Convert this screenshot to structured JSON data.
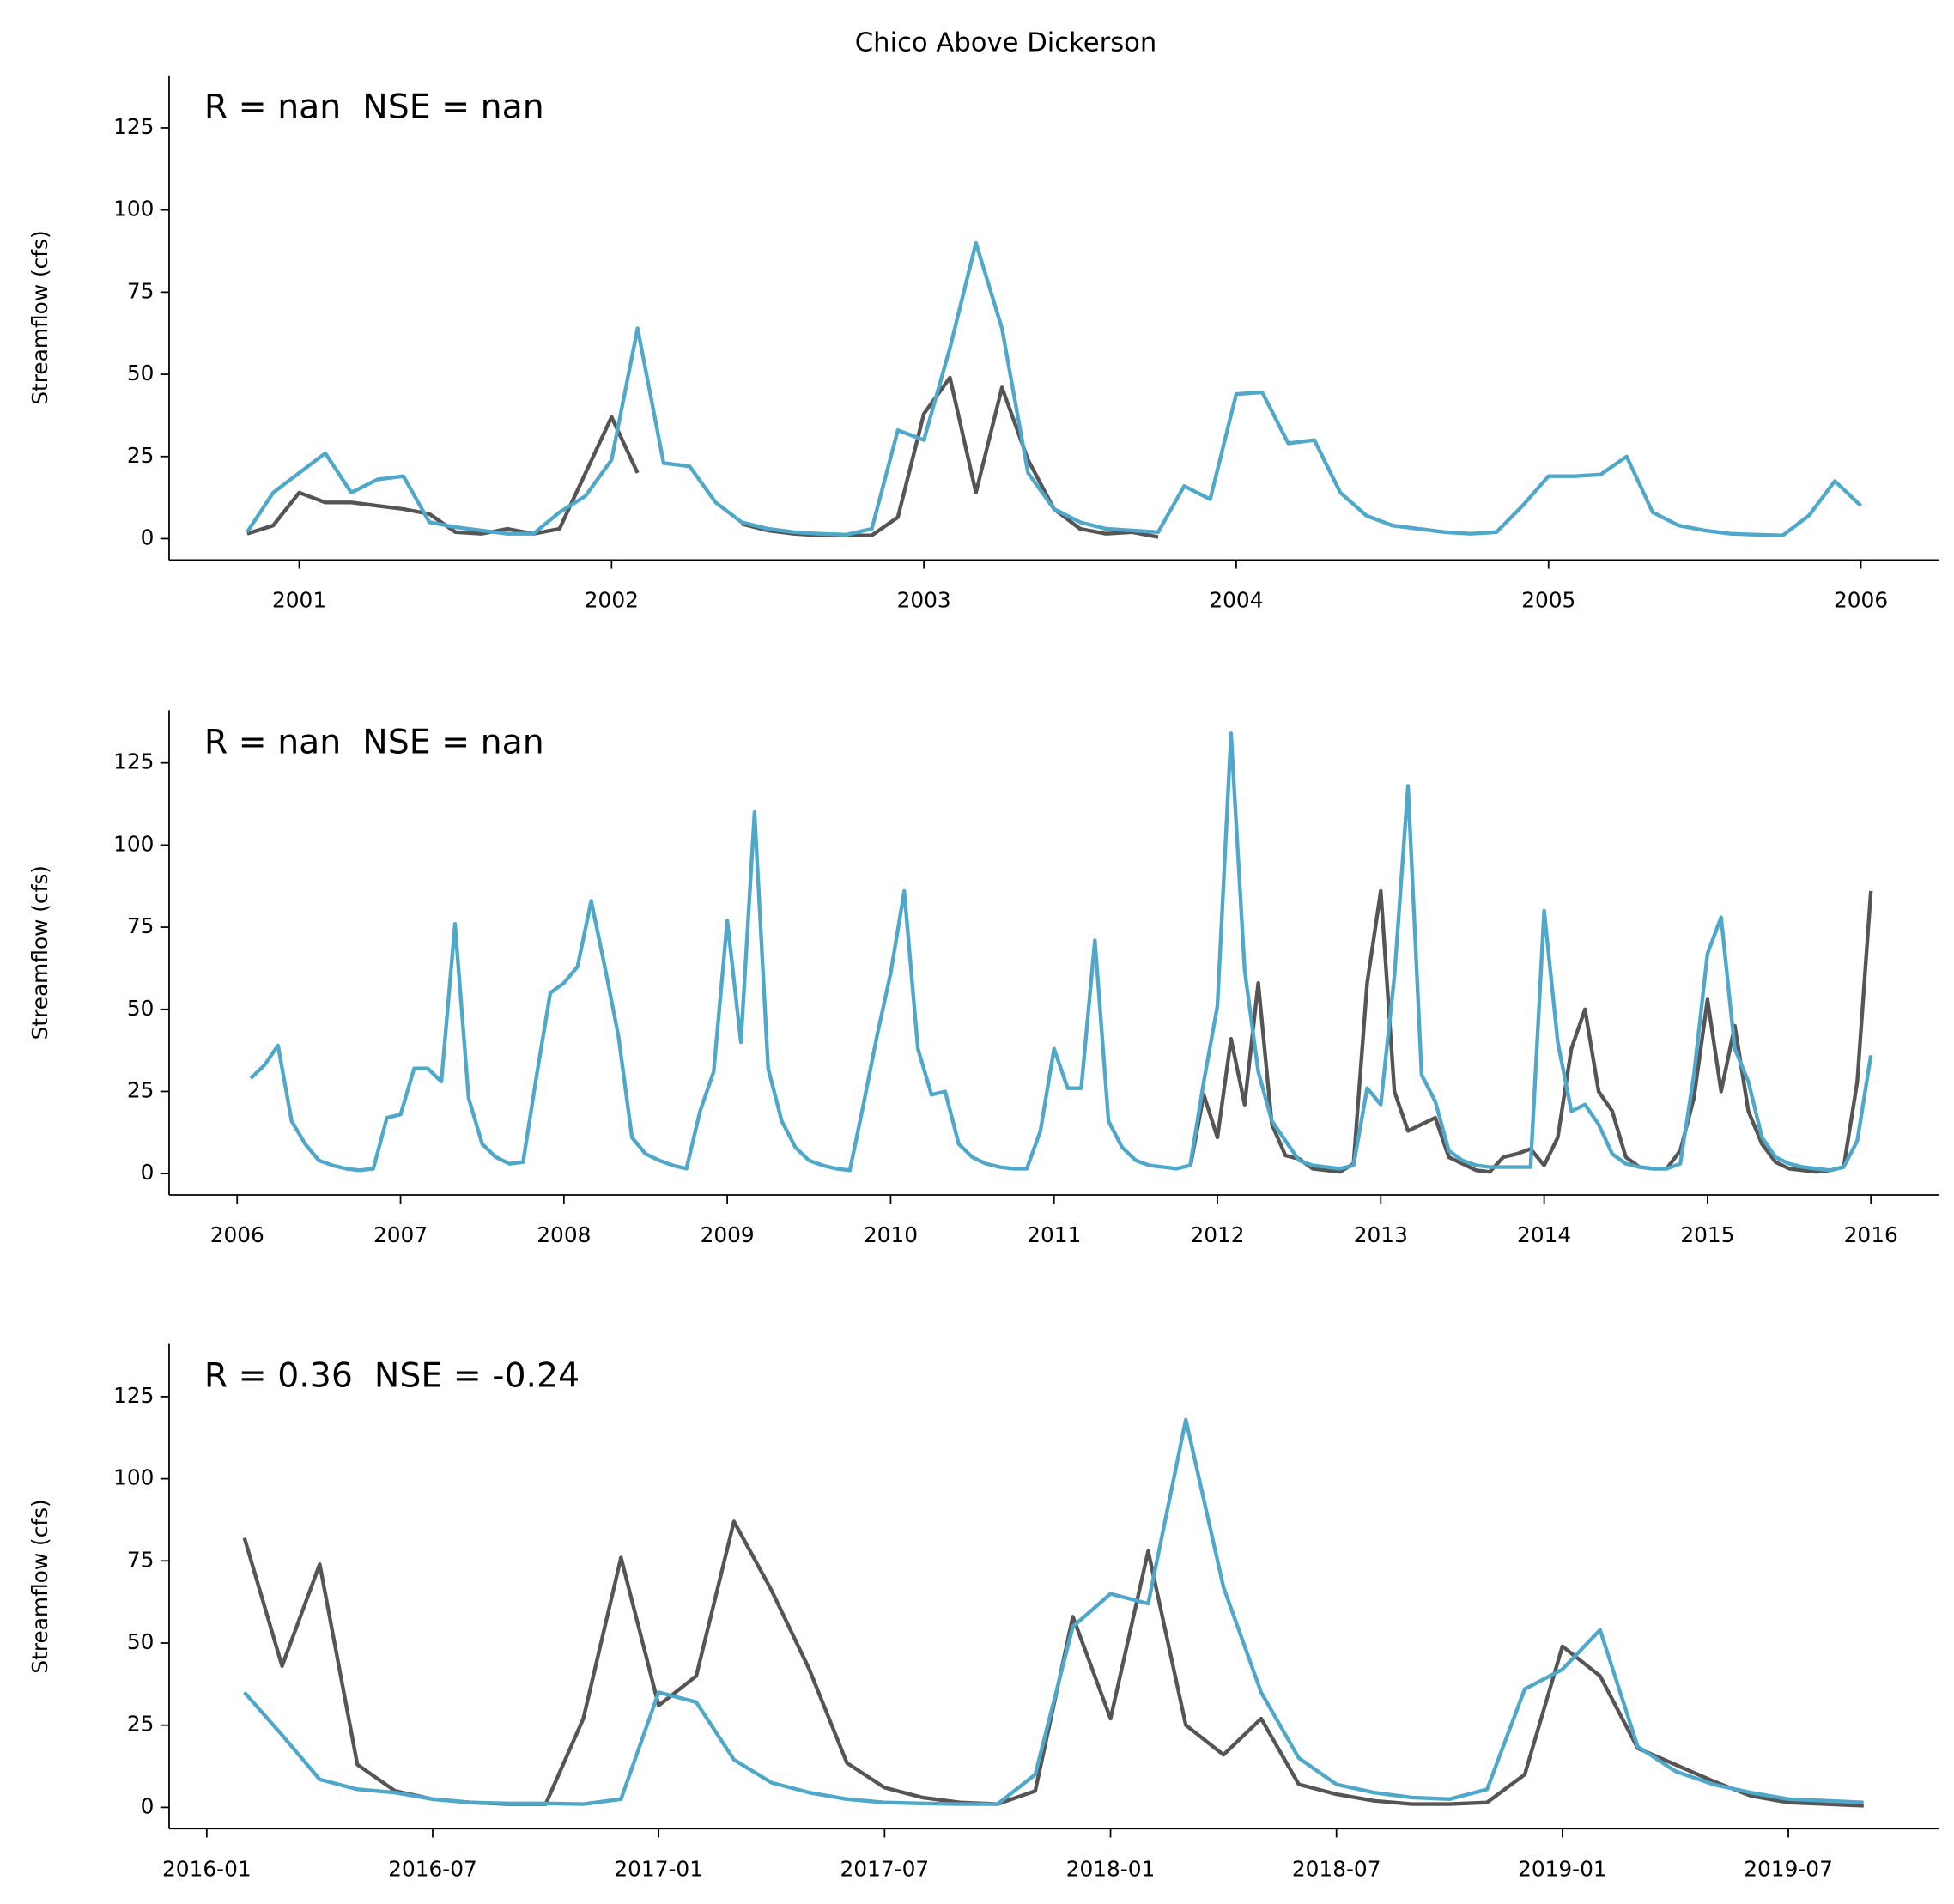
{
  "chart_data": [
    {
      "type": "line",
      "title": "Chico Above Dickerson",
      "annotation": "R = nan  NSE = nan",
      "ylabel": "Streamflow (cfs)",
      "x": [
        "2000-11",
        "2000-12",
        "2001-01",
        "2001-02",
        "2001-03",
        "2001-04",
        "2001-05",
        "2001-06",
        "2001-07",
        "2001-08",
        "2001-09",
        "2001-10",
        "2001-11",
        "2001-12",
        "2002-01",
        "2002-02",
        "2002-03",
        "2002-04",
        "2002-05",
        "2002-06",
        "2002-07",
        "2002-08",
        "2002-09",
        "2002-10",
        "2002-11",
        "2002-12",
        "2003-01",
        "2003-02",
        "2003-03",
        "2003-04",
        "2003-05",
        "2003-06",
        "2003-07",
        "2003-08",
        "2003-09",
        "2003-10",
        "2003-11",
        "2003-12",
        "2004-01",
        "2004-02",
        "2004-03",
        "2004-04",
        "2004-05",
        "2004-06",
        "2004-07",
        "2004-08",
        "2004-09",
        "2004-10",
        "2004-11",
        "2004-12",
        "2005-01",
        "2005-02",
        "2005-03",
        "2005-04",
        "2005-05",
        "2005-06",
        "2005-07",
        "2005-08",
        "2005-09",
        "2005-10",
        "2005-11",
        "2005-12",
        "2006-01"
      ],
      "series": [
        {
          "color": "#555555",
          "values": [
            1.5,
            4,
            14,
            11,
            11,
            10,
            9,
            7.5,
            2,
            1.5,
            3,
            1.5,
            3,
            20,
            37,
            20,
            null,
            null,
            null,
            4.5,
            2.5,
            1.5,
            1,
            1,
            1,
            6.5,
            38,
            49,
            14,
            46,
            24,
            9,
            3,
            1.5,
            2,
            0.5,
            null,
            null,
            null,
            null,
            null,
            null,
            null,
            null,
            null,
            null,
            null,
            null,
            null,
            null,
            null,
            null,
            null,
            null,
            null,
            null,
            null,
            null,
            null,
            null,
            null,
            null,
            null
          ]
        },
        {
          "color": "#4fa8c9",
          "values": [
            2,
            14,
            20,
            26,
            14,
            18,
            19,
            5,
            3.5,
            2.5,
            1.5,
            1.5,
            8,
            13,
            24,
            64,
            23,
            22,
            11,
            5,
            3,
            2,
            1.5,
            1.2,
            3,
            33,
            30,
            58,
            90,
            64,
            20,
            9,
            5,
            3,
            2.5,
            2,
            16,
            12,
            44,
            44.5,
            29,
            30,
            14,
            7,
            4,
            3,
            2,
            1.5,
            2,
            10,
            19,
            19,
            19.5,
            25,
            8,
            4,
            2.5,
            1.5,
            1.2,
            1,
            7,
            17.5,
            10
          ]
        }
      ],
      "xlim": [
        "2000-08",
        "2006-04"
      ],
      "xticks": [
        "2001",
        "2002",
        "2003",
        "2004",
        "2005",
        "2006"
      ],
      "ylim": [
        -6.5,
        141
      ],
      "yticks": [
        0,
        25,
        50,
        75,
        100,
        125
      ]
    },
    {
      "type": "line",
      "annotation": "R = nan  NSE = nan",
      "ylabel": "Streamflow (cfs)",
      "x": [
        "2006-02",
        "2006-03",
        "2006-04",
        "2006-05",
        "2006-06",
        "2006-07",
        "2006-08",
        "2006-09",
        "2006-10",
        "2006-11",
        "2006-12",
        "2007-01",
        "2007-02",
        "2007-03",
        "2007-04",
        "2007-05",
        "2007-06",
        "2007-07",
        "2007-08",
        "2007-09",
        "2007-10",
        "2007-11",
        "2007-12",
        "2008-01",
        "2008-02",
        "2008-03",
        "2008-04",
        "2008-05",
        "2008-06",
        "2008-07",
        "2008-08",
        "2008-09",
        "2008-10",
        "2008-11",
        "2008-12",
        "2009-01",
        "2009-02",
        "2009-03",
        "2009-04",
        "2009-05",
        "2009-06",
        "2009-07",
        "2009-08",
        "2009-09",
        "2009-10",
        "2009-11",
        "2009-12",
        "2010-01",
        "2010-02",
        "2010-03",
        "2010-04",
        "2010-05",
        "2010-06",
        "2010-07",
        "2010-08",
        "2010-09",
        "2010-10",
        "2010-11",
        "2010-12",
        "2011-01",
        "2011-02",
        "2011-03",
        "2011-04",
        "2011-05",
        "2011-06",
        "2011-07",
        "2011-08",
        "2011-09",
        "2011-10",
        "2011-11",
        "2011-12",
        "2012-01",
        "2012-02",
        "2012-03",
        "2012-04",
        "2012-05",
        "2012-06",
        "2012-07",
        "2012-08",
        "2012-09",
        "2012-10",
        "2012-11",
        "2012-12",
        "2013-01",
        "2013-02",
        "2013-03",
        "2013-04",
        "2013-05",
        "2013-06",
        "2013-07",
        "2013-08",
        "2013-09",
        "2013-10",
        "2013-11",
        "2013-12",
        "2014-01",
        "2014-02",
        "2014-03",
        "2014-04",
        "2014-05",
        "2014-06",
        "2014-07",
        "2014-08",
        "2014-09",
        "2014-10",
        "2014-11",
        "2014-12",
        "2015-01",
        "2015-02",
        "2015-03",
        "2015-04",
        "2015-05",
        "2015-06",
        "2015-07",
        "2015-08",
        "2015-09",
        "2015-10",
        "2015-11",
        "2015-12",
        "2016-01"
      ],
      "series": [
        {
          "color": "#555555",
          "values": [
            null,
            null,
            null,
            null,
            null,
            null,
            null,
            null,
            null,
            null,
            null,
            null,
            null,
            null,
            null,
            null,
            null,
            null,
            null,
            null,
            null,
            null,
            null,
            null,
            null,
            null,
            null,
            null,
            null,
            null,
            null,
            null,
            null,
            null,
            null,
            null,
            null,
            null,
            null,
            null,
            null,
            null,
            null,
            null,
            null,
            null,
            null,
            null,
            null,
            null,
            null,
            null,
            null,
            null,
            null,
            null,
            null,
            null,
            null,
            null,
            null,
            null,
            null,
            null,
            null,
            null,
            null,
            null,
            null,
            2,
            24,
            11,
            41,
            21,
            58,
            15,
            5.5,
            4.5,
            1.5,
            1,
            0.5,
            3,
            58,
            86,
            25,
            13,
            15,
            17,
            5,
            3,
            1,
            0.5,
            5,
            6,
            7.5,
            2.5,
            11,
            38,
            50,
            25,
            19,
            5,
            2,
            1.5,
            1.5,
            7,
            23,
            53,
            25,
            45,
            19,
            9,
            3.5,
            1.5,
            1,
            0.5,
            1,
            2,
            28,
            86
          ]
        },
        {
          "color": "#4fa8c9",
          "values": [
            29,
            33,
            39,
            16,
            9,
            4,
            2.5,
            1.5,
            1,
            1.5,
            17,
            18,
            32,
            32,
            28,
            76,
            23,
            9,
            5,
            3,
            3.5,
            30,
            55,
            58,
            63,
            83,
            63,
            42,
            11,
            6,
            4,
            2.5,
            1.5,
            19,
            31,
            77,
            40,
            110,
            32,
            16,
            8,
            4,
            2.5,
            1.5,
            1,
            21,
            42,
            61,
            86,
            38,
            24,
            25,
            9,
            5,
            3,
            2,
            1.5,
            1.5,
            13,
            38,
            26,
            26,
            71,
            16,
            8,
            4,
            2.5,
            2,
            1.5,
            2.5,
            28,
            51,
            134,
            62,
            31,
            16,
            10,
            4,
            2.5,
            2,
            1.5,
            2.5,
            26,
            21,
            60,
            118,
            30,
            22,
            7,
            4,
            2.5,
            2,
            2,
            2,
            2,
            80,
            40,
            19,
            21,
            15,
            6,
            3,
            2,
            1.5,
            1.5,
            3,
            30,
            67,
            78,
            38,
            28,
            11,
            5,
            3,
            2,
            1.5,
            1,
            2,
            10,
            36
          ]
        }
      ],
      "xlim": [
        "2005-08",
        "2016-06"
      ],
      "xticks": [
        "2006",
        "2007",
        "2008",
        "2009",
        "2010",
        "2011",
        "2012",
        "2013",
        "2014",
        "2015",
        "2016"
      ],
      "ylim": [
        -6.5,
        141
      ],
      "yticks": [
        0,
        25,
        50,
        75,
        100,
        125
      ]
    },
    {
      "type": "line",
      "annotation": "R = 0.36  NSE = -0.24",
      "ylabel": "Streamflow (cfs)",
      "x": [
        "2016-02",
        "2016-03",
        "2016-04",
        "2016-05",
        "2016-06",
        "2016-07",
        "2016-08",
        "2016-09",
        "2016-10",
        "2016-11",
        "2016-12",
        "2017-01",
        "2017-02",
        "2017-03",
        "2017-04",
        "2017-05",
        "2017-06",
        "2017-07",
        "2017-08",
        "2017-09",
        "2017-10",
        "2017-11",
        "2017-12",
        "2018-01",
        "2018-02",
        "2018-03",
        "2018-04",
        "2018-05",
        "2018-06",
        "2018-07",
        "2018-08",
        "2018-09",
        "2018-10",
        "2018-11",
        "2018-12",
        "2019-01",
        "2019-02",
        "2019-03",
        "2019-04",
        "2019-05",
        "2019-06",
        "2019-07",
        "2019-08",
        "2019-09"
      ],
      "series": [
        {
          "color": "#555555",
          "values": [
            82,
            43,
            74,
            13,
            5,
            2.5,
            1.5,
            1,
            1,
            27,
            76,
            31,
            40,
            87,
            66,
            42,
            13.5,
            6,
            3,
            1.5,
            1,
            5,
            58,
            27,
            78,
            25,
            16,
            27,
            7,
            4,
            2,
            1,
            1,
            1.5,
            10,
            49,
            40,
            18,
            13,
            8,
            3.5,
            1.5,
            1,
            0.5
          ]
        },
        {
          "color": "#4fa8c9",
          "values": [
            35,
            22,
            8.5,
            5.5,
            4.5,
            2.5,
            1.5,
            1.2,
            1.2,
            1,
            2.5,
            35,
            32,
            14.5,
            7.5,
            4.5,
            2.5,
            1.5,
            1.2,
            1,
            1,
            10,
            55,
            65,
            62,
            118,
            67,
            35,
            15,
            7,
            4.5,
            3,
            2.5,
            5.5,
            36,
            42,
            54,
            18.5,
            11,
            7,
            4.5,
            2.5,
            2,
            1.5
          ]
        }
      ],
      "xlim": [
        "2015-12",
        "2019-11"
      ],
      "xticks": [
        "2016-01",
        "2016-07",
        "2017-01",
        "2017-07",
        "2018-01",
        "2018-07",
        "2019-01",
        "2019-07"
      ],
      "ylim": [
        -6.5,
        141
      ],
      "yticks": [
        0,
        25,
        50,
        75,
        100,
        125
      ]
    }
  ]
}
